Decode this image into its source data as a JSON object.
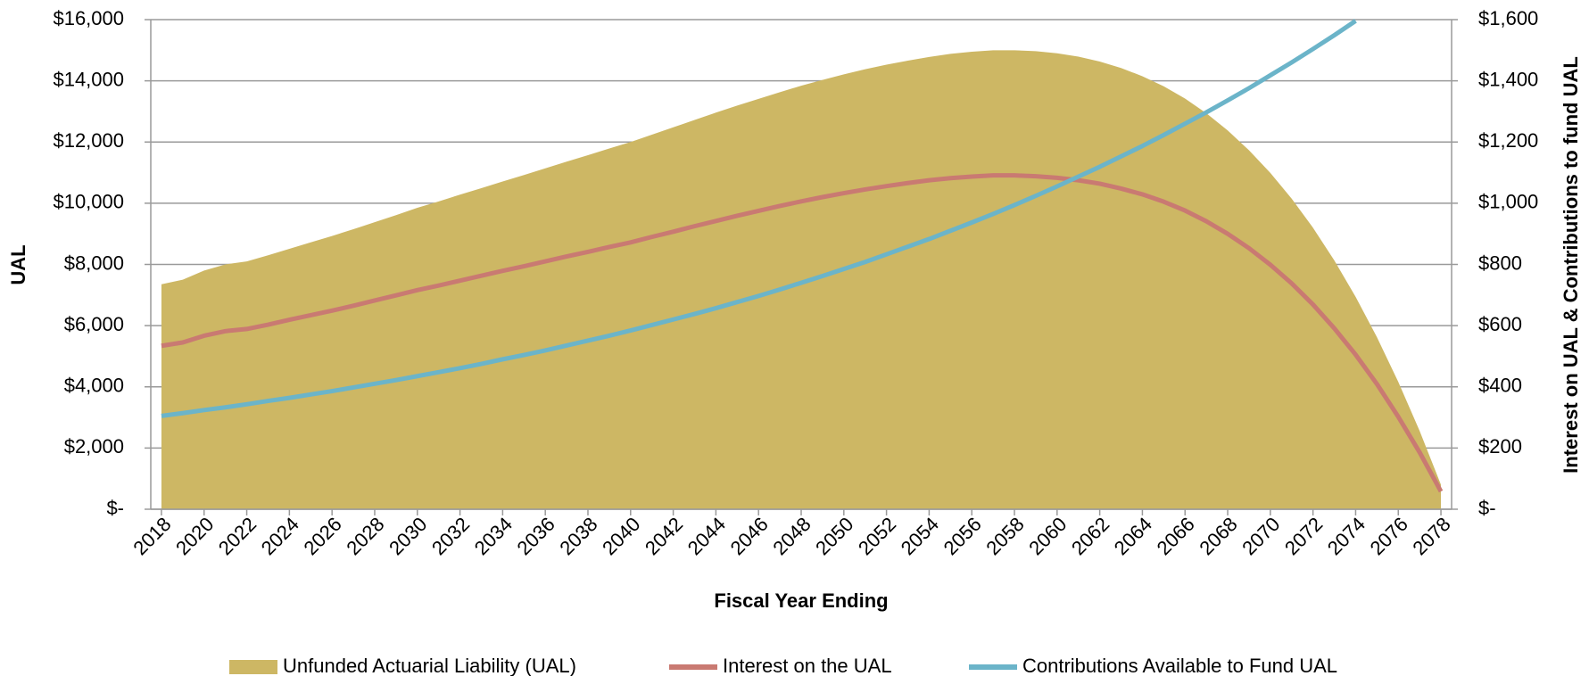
{
  "chart_data": {
    "type": "area-line",
    "x_label": "Fiscal Year Ending",
    "y_label": "UAL",
    "y2_label": "Interest on UAL & Contributions to fund UAL",
    "categories": [
      "2018",
      null,
      "2020",
      null,
      "2022",
      null,
      "2024",
      null,
      "2026",
      null,
      "2028",
      null,
      "2030",
      null,
      "2032",
      null,
      "2034",
      null,
      "2036",
      null,
      "2038",
      null,
      "2040",
      null,
      "2042",
      null,
      "2044",
      null,
      "2046",
      null,
      "2048",
      null,
      "2050",
      null,
      "2052",
      null,
      "2054",
      null,
      "2056",
      null,
      "2058",
      null,
      "2060",
      null,
      "2062",
      null,
      "2064",
      null,
      "2066",
      null,
      "2068",
      null,
      "2070",
      null,
      "2072",
      null,
      "2074",
      null,
      "2076",
      null,
      "2078"
    ],
    "series": [
      {
        "name": "Unfunded Actuarial Liability (UAL)",
        "color": "#cdb764",
        "kind": "area",
        "values": [
          7350,
          7500,
          7800,
          8000,
          8100,
          8300,
          8510,
          8720,
          8930,
          9150,
          9380,
          9610,
          9850,
          10060,
          10280,
          10490,
          10710,
          10920,
          11140,
          11360,
          11570,
          11790,
          12000,
          12240,
          12480,
          12720,
          12960,
          13190,
          13410,
          13630,
          13840,
          14030,
          14210,
          14380,
          14530,
          14660,
          14780,
          14880,
          14950,
          15000,
          15000,
          14970,
          14900,
          14790,
          14630,
          14420,
          14150,
          13820,
          13420,
          12940,
          12380,
          11730,
          10990,
          10150,
          9200,
          8130,
          6940,
          5620,
          4160,
          2560,
          800
        ]
      },
      {
        "name": "Interest on the UAL",
        "color": "#c97a72",
        "kind": "line",
        "axis": "y2",
        "values": [
          534,
          545,
          567,
          582,
          589,
          603,
          619,
          634,
          649,
          665,
          682,
          699,
          716,
          731,
          747,
          763,
          779,
          794,
          810,
          826,
          841,
          857,
          872,
          890,
          907,
          925,
          942,
          959,
          975,
          991,
          1006,
          1020,
          1033,
          1045,
          1056,
          1066,
          1075,
          1082,
          1087,
          1091,
          1091,
          1088,
          1083,
          1075,
          1064,
          1048,
          1029,
          1005,
          976,
          941,
          900,
          853,
          799,
          738,
          669,
          591,
          505,
          409,
          302,
          186,
          58
        ]
      },
      {
        "name": "Contributions Available to Fund UAL",
        "color": "#6bb4c9",
        "kind": "line",
        "axis": "y2",
        "values": [
          305,
          314,
          324,
          333,
          343,
          354,
          364,
          375,
          386,
          398,
          410,
          422,
          435,
          448,
          461,
          475,
          490,
          504,
          519,
          535,
          551,
          567,
          584,
          602,
          620,
          638,
          657,
          677,
          697,
          718,
          740,
          762,
          785,
          808,
          833,
          858,
          883,
          910,
          937,
          965,
          994,
          1024,
          1055,
          1087,
          1119,
          1153,
          1187,
          1223,
          1260,
          1297,
          1336,
          1376,
          1418,
          1460,
          1504,
          1549,
          1596,
          null,
          null,
          null,
          null
        ]
      }
    ],
    "ylim": [
      0,
      16000
    ],
    "yticks": [
      {
        "value": 0,
        "label": "$-"
      },
      {
        "value": 2000,
        "label": "$2,000"
      },
      {
        "value": 4000,
        "label": "$4,000"
      },
      {
        "value": 6000,
        "label": "$6,000"
      },
      {
        "value": 8000,
        "label": "$8,000"
      },
      {
        "value": 10000,
        "label": "$10,000"
      },
      {
        "value": 12000,
        "label": "$12,000"
      },
      {
        "value": 14000,
        "label": "$14,000"
      },
      {
        "value": 16000,
        "label": "$16,000"
      }
    ],
    "y2lim": [
      0,
      1600
    ],
    "y2ticks": [
      {
        "value": 0,
        "label": "$-"
      },
      {
        "value": 200,
        "label": "$200"
      },
      {
        "value": 400,
        "label": "$400"
      },
      {
        "value": 600,
        "label": "$600"
      },
      {
        "value": 800,
        "label": "$800"
      },
      {
        "value": 1000,
        "label": "$1,000"
      },
      {
        "value": 1200,
        "label": "$1,200"
      },
      {
        "value": 1400,
        "label": "$1,400"
      },
      {
        "value": 1600,
        "label": "$1,600"
      }
    ],
    "grid": true,
    "legend": "bottom"
  }
}
